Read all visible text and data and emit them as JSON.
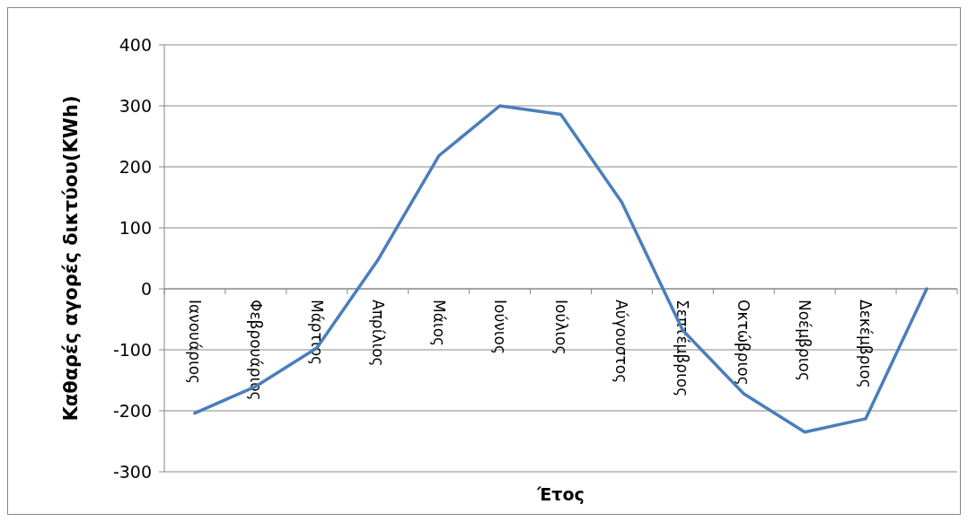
{
  "chart_data": {
    "type": "line",
    "xlabel": "Έτος",
    "ylabel": "Καθαρές αγορές δικτύου(KWh)",
    "categories": [
      "Ιανουάριος",
      "Φεβρουάριος",
      "Μάρτιος",
      "Απρίλιος",
      "Μάιος",
      "Ιούνιος",
      "Ιούλιος",
      "Αύγουστος",
      "Σεπτέμβριος",
      "Οκτώβριος",
      "Νοέμβριος",
      "Δεκέμβριος",
      null
    ],
    "series": [
      {
        "color": "#4a7ebb",
        "values": [
          -204,
          -160,
          -97,
          47,
          218,
          300,
          286,
          142,
          -68,
          -172,
          -235,
          -213,
          0
        ]
      }
    ],
    "ylim": [
      -300,
      400
    ],
    "yticks": [
      -300,
      -200,
      -100,
      0,
      100,
      200,
      300,
      400
    ],
    "grid": "y",
    "marker": "none",
    "line_style": "solid"
  }
}
